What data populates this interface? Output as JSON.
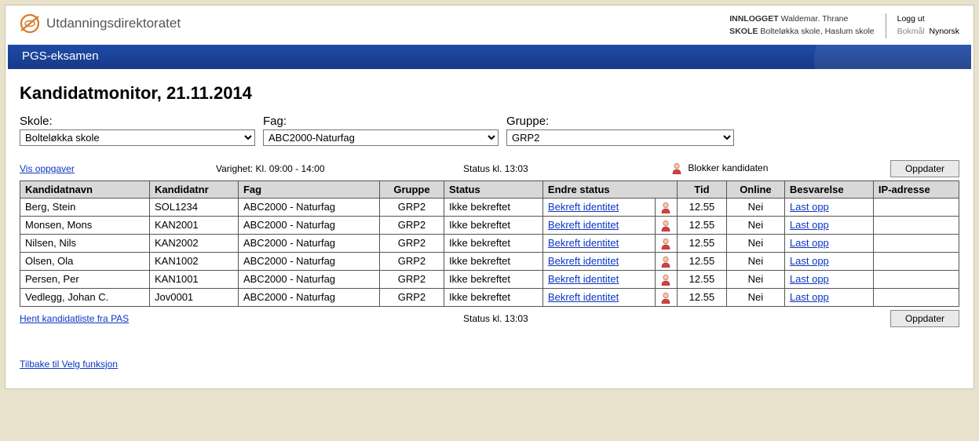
{
  "org_name": "Utdanningsdirektoratet",
  "header": {
    "logged_in_label": "INNLOGGET",
    "logged_in_user": "Waldemar. Thrane",
    "school_label": "SKOLE",
    "school_value": "Bolteløkka skole, Haslum skole",
    "logout_label": "Logg ut",
    "lang_current": "Bokmål",
    "lang_other": "Nynorsk"
  },
  "app_title": "PGS-eksamen",
  "page_title": "Kandidatmonitor, 21.11.2014",
  "filters": {
    "skole_label": "Skole:",
    "skole_value": "Bolteløkka skole",
    "fag_label": "Fag:",
    "fag_value": "ABC2000-Naturfag",
    "gruppe_label": "Gruppe:",
    "gruppe_value": "GRP2"
  },
  "links": {
    "vis_oppgaver": "Vis oppgaver",
    "hent_kandidatliste": "Hent kandidatliste fra PAS",
    "tilbake": "Tilbake til Velg funksjon"
  },
  "varighet_label": "Varighet: Kl. 09:00 - 14:00",
  "status_label": "Status kl. 13:03",
  "blokker_label": "Blokker kandidaten",
  "oppdater_label": "Oppdater",
  "table": {
    "headers": {
      "navn": "Kandidatnavn",
      "nr": "Kandidatnr",
      "fag": "Fag",
      "gruppe": "Gruppe",
      "status": "Status",
      "endre": "Endre status",
      "tid": "Tid",
      "online": "Online",
      "besv": "Besvarelse",
      "ip": "IP-adresse"
    },
    "rows": [
      {
        "navn": "Berg, Stein",
        "nr": "SOL1234",
        "fag": "ABC2000 - Naturfag",
        "gruppe": "GRP2",
        "status": "Ikke bekreftet",
        "endre": "Bekreft identitet",
        "tid": "12.55",
        "online": "Nei",
        "besv": "Last opp",
        "ip": ""
      },
      {
        "navn": "Monsen, Mons",
        "nr": "KAN2001",
        "fag": "ABC2000 - Naturfag",
        "gruppe": "GRP2",
        "status": "Ikke bekreftet",
        "endre": "Bekreft identitet",
        "tid": "12.55",
        "online": "Nei",
        "besv": "Last opp",
        "ip": ""
      },
      {
        "navn": "Nilsen, Nils",
        "nr": "KAN2002",
        "fag": "ABC2000 - Naturfag",
        "gruppe": "GRP2",
        "status": "Ikke bekreftet",
        "endre": "Bekreft identitet",
        "tid": "12.55",
        "online": "Nei",
        "besv": "Last opp",
        "ip": ""
      },
      {
        "navn": "Olsen, Ola",
        "nr": "KAN1002",
        "fag": "ABC2000 - Naturfag",
        "gruppe": "GRP2",
        "status": "Ikke bekreftet",
        "endre": "Bekreft identitet",
        "tid": "12.55",
        "online": "Nei",
        "besv": "Last opp",
        "ip": ""
      },
      {
        "navn": "Persen, Per",
        "nr": "KAN1001",
        "fag": "ABC2000 - Naturfag",
        "gruppe": "GRP2",
        "status": "Ikke bekreftet",
        "endre": "Bekreft identitet",
        "tid": "12.55",
        "online": "Nei",
        "besv": "Last opp",
        "ip": ""
      },
      {
        "navn": "Vedlegg, Johan C.",
        "nr": "Jov0001",
        "fag": "ABC2000 - Naturfag",
        "gruppe": "GRP2",
        "status": "Ikke bekreftet",
        "endre": "Bekreft identitet",
        "tid": "12.55",
        "online": "Nei",
        "besv": "Last opp",
        "ip": ""
      }
    ]
  },
  "colors": {
    "page_bg": "#e8e1cc",
    "topbar_bg": "#1a3b88",
    "link": "#0b35c4",
    "grid_header_bg": "#d8d8d8",
    "logo": "#d97a2a",
    "person_face": "#f8c9a0",
    "person_body": "#d44040"
  },
  "column_widths": {
    "navn": 160,
    "nr": 88,
    "fag": 220,
    "gruppe": 90,
    "status": 130,
    "endre": 140,
    "icon": 28,
    "tid": 50,
    "online": 58,
    "besv": 138,
    "ip": 96
  }
}
